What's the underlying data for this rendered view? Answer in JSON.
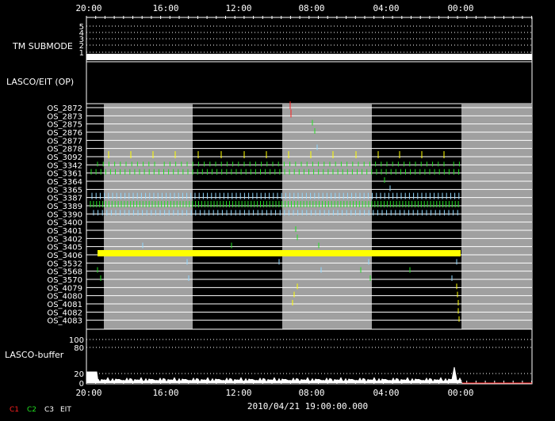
{
  "chart_data": {
    "type": "table",
    "x_axis": {
      "tick_labels": [
        "20:00",
        "16:00",
        "12:00",
        "08:00",
        "04:00",
        "00:00"
      ],
      "direction": "reversed"
    },
    "timestamp": "2010/04/21 19:00:00.000",
    "tm_submode": {
      "title": "TM SUBMODE",
      "levels": [
        "5",
        "4",
        "3",
        "2",
        "1"
      ],
      "active_level": "1"
    },
    "lasco_eit": {
      "title": "LASCO/EIT (OP)"
    },
    "os_rows": [
      "OS_2872",
      "OS_2873",
      "OS_2875",
      "OS_2876",
      "OS_2877",
      "OS_2878",
      "OS_3092",
      "OS_3342",
      "OS_3361",
      "OS_3364",
      "OS_3365",
      "OS_3387",
      "OS_3389",
      "OS_3390",
      "OS_3400",
      "OS_3401",
      "OS_3402",
      "OS_3405",
      "OS_3406",
      "OS_3532",
      "OS_3568",
      "OS_3570",
      "OS_4079",
      "OS_4080",
      "OS_4081",
      "OS_4082",
      "OS_4083"
    ],
    "buffer": {
      "title": "LASCO-buffer",
      "upper_ticks": [
        "100",
        "80"
      ],
      "lower_ticks": [
        "20",
        "0"
      ]
    },
    "legend": [
      {
        "label": "C1",
        "color": "#ff2020"
      },
      {
        "label": "C2",
        "color": "#20e020"
      },
      {
        "label": "C3",
        "color": "#ffffff"
      },
      {
        "label": "EIT",
        "color": "#ffffff"
      }
    ]
  }
}
